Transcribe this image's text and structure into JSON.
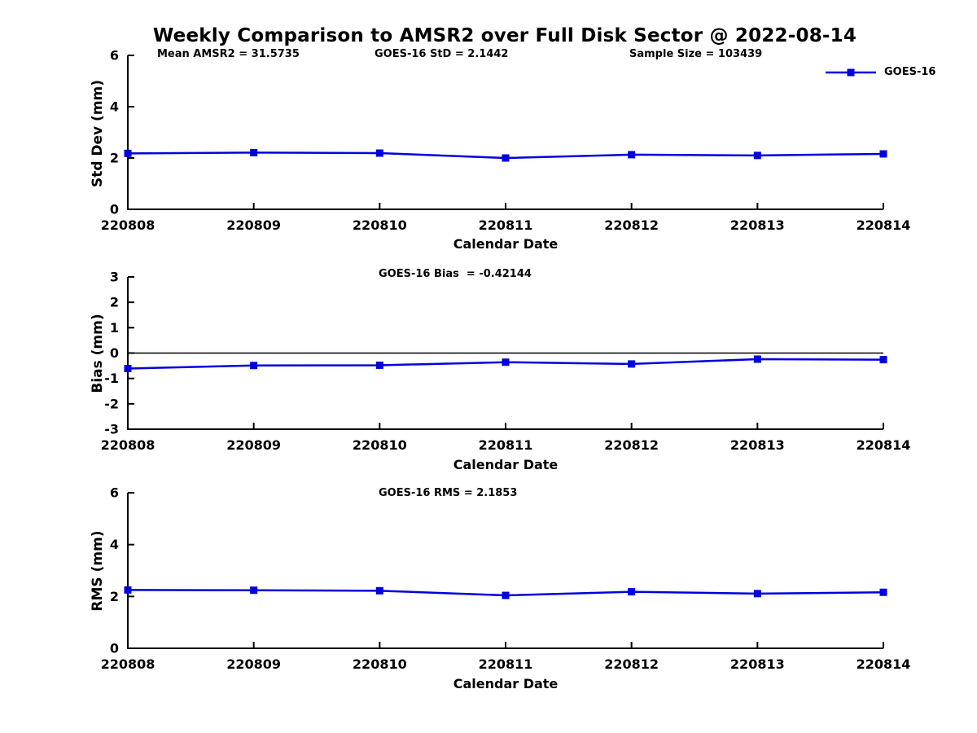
{
  "title": "Weekly Comparison to AMSR2 over Full Disk Sector @ 2022-08-14",
  "colors": {
    "line": "#0000dd",
    "axis": "#000000",
    "background": "#ffffff"
  },
  "legend": {
    "label": "GOES-16"
  },
  "chart_data": [
    {
      "type": "line",
      "name": "std-dev-panel",
      "annotations": [
        "Mean AMSR2 = 31.5735",
        "GOES-16 StD = 2.1442",
        "Sample Size = 103439"
      ],
      "categories": [
        "220808",
        "220809",
        "220810",
        "220811",
        "220812",
        "220813",
        "220814"
      ],
      "series": [
        {
          "name": "GOES-16",
          "color": "#0000dd",
          "marker": "square",
          "values": [
            2.18,
            2.21,
            2.19,
            2.0,
            2.13,
            2.1,
            2.16
          ]
        }
      ],
      "xlabel": "Calendar Date",
      "ylabel": "Std Dev (mm)",
      "ylim": [
        0,
        6
      ],
      "yticks": [
        0,
        2,
        4,
        6
      ],
      "grid": false,
      "zero_line": false,
      "legend_position": "top-right"
    },
    {
      "type": "line",
      "name": "bias-panel",
      "annotations": [
        "GOES-16 Bias  = -0.42144"
      ],
      "categories": [
        "220808",
        "220809",
        "220810",
        "220811",
        "220812",
        "220813",
        "220814"
      ],
      "series": [
        {
          "name": "GOES-16",
          "color": "#0000dd",
          "marker": "square",
          "values": [
            -0.61,
            -0.49,
            -0.48,
            -0.36,
            -0.43,
            -0.24,
            -0.26
          ]
        }
      ],
      "xlabel": "Calendar Date",
      "ylabel": "Bias (mm)",
      "ylim": [
        -3,
        3
      ],
      "yticks": [
        -3,
        -2,
        -1,
        0,
        1,
        2,
        3
      ],
      "grid": false,
      "zero_line": true,
      "legend_position": "none"
    },
    {
      "type": "line",
      "name": "rms-panel",
      "annotations": [
        "GOES-16 RMS = 2.1853"
      ],
      "categories": [
        "220808",
        "220809",
        "220810",
        "220811",
        "220812",
        "220813",
        "220814"
      ],
      "series": [
        {
          "name": "GOES-16",
          "color": "#0000dd",
          "marker": "square",
          "values": [
            2.25,
            2.24,
            2.22,
            2.04,
            2.18,
            2.11,
            2.16
          ]
        }
      ],
      "xlabel": "Calendar Date",
      "ylabel": "RMS (mm)",
      "ylim": [
        0,
        6
      ],
      "yticks": [
        0,
        2,
        4,
        6
      ],
      "grid": false,
      "zero_line": false,
      "legend_position": "none"
    }
  ]
}
